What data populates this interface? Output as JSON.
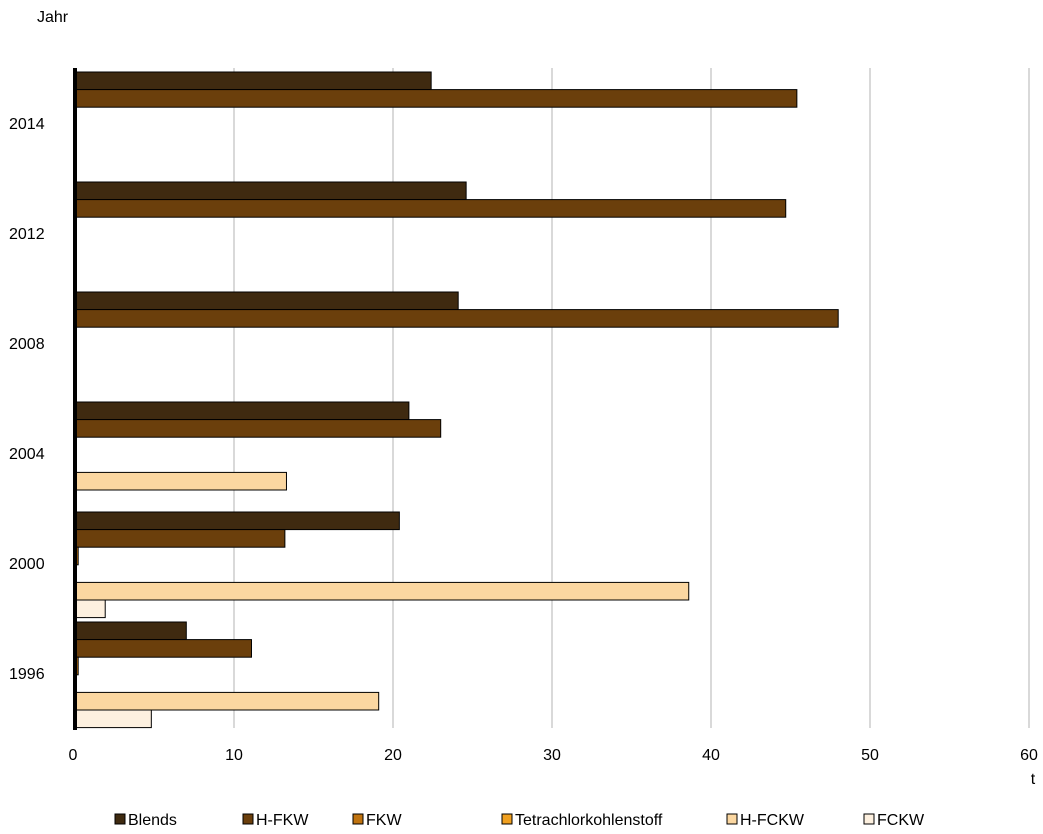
{
  "chart_data": {
    "type": "bar",
    "orientation": "horizontal",
    "title": "",
    "ylabel": "Jahr",
    "xlabel": "t",
    "xlim": [
      0,
      60
    ],
    "xticks": [
      0,
      10,
      20,
      30,
      40,
      50,
      60
    ],
    "grid": "vertical",
    "legend_position": "bottom",
    "categories": [
      "1996",
      "2000",
      "2004",
      "2008",
      "2012",
      "2014"
    ],
    "series": [
      {
        "name": "Blends",
        "color": "#3f2a10",
        "values": [
          7.0,
          20.4,
          21.0,
          24.1,
          24.6,
          22.4
        ]
      },
      {
        "name": "H-FKW",
        "color": "#6b3f0c",
        "values": [
          11.1,
          13.2,
          23.0,
          48.0,
          44.7,
          45.4
        ]
      },
      {
        "name": "FKW",
        "color": "#c0730f",
        "values": [
          0.2,
          0.2,
          0,
          0,
          0,
          0
        ]
      },
      {
        "name": "Tetrachlorkohlenstoff",
        "color": "#f0a020",
        "values": [
          0,
          0,
          0,
          0,
          0,
          0
        ]
      },
      {
        "name": "H-FCKW",
        "color": "#fbd7a1",
        "values": [
          19.1,
          38.6,
          13.3,
          0,
          0,
          0
        ]
      },
      {
        "name": "FCKW",
        "color": "#fdf0df",
        "values": [
          4.8,
          1.9,
          0,
          0,
          0,
          0
        ]
      }
    ]
  }
}
